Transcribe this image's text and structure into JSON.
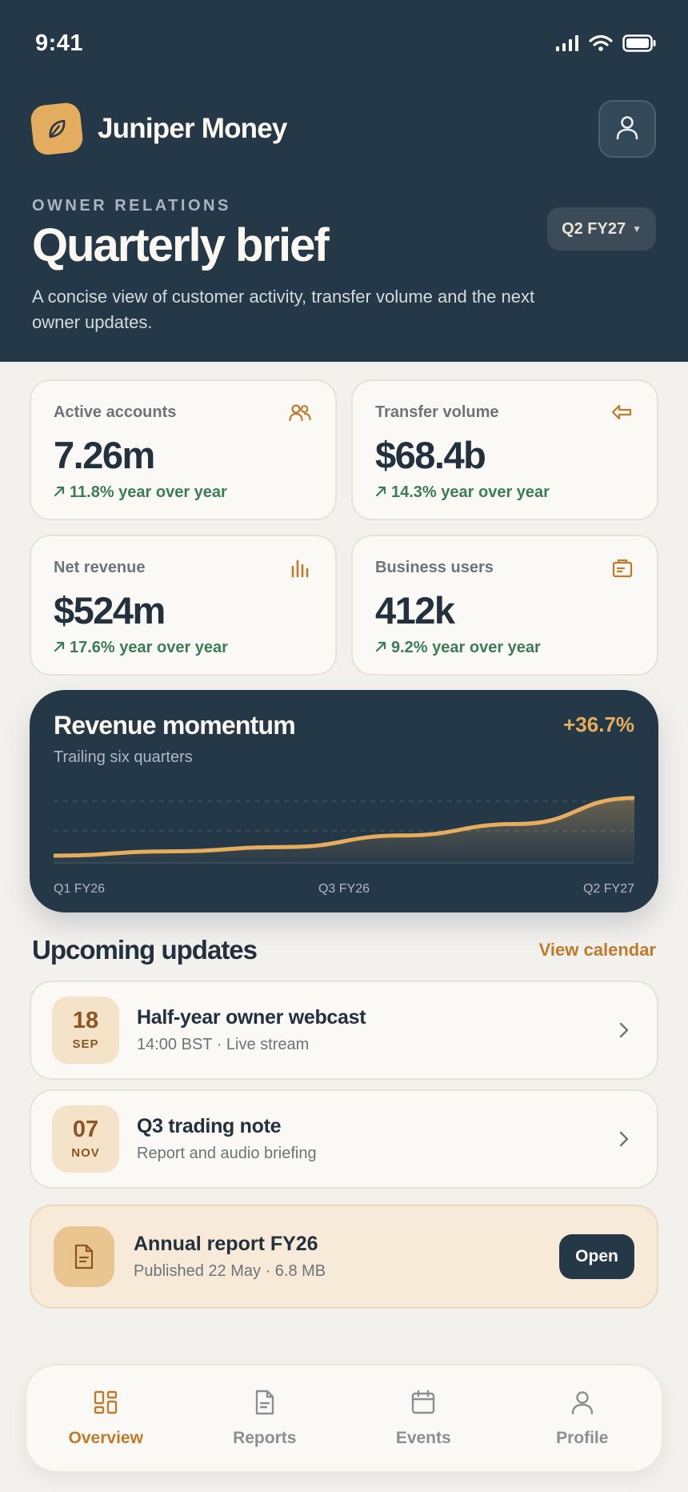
{
  "status_bar": {
    "time": "9:41"
  },
  "app": {
    "name": "Juniper Money"
  },
  "header": {
    "eyebrow": "OWNER RELATIONS",
    "title": "Quarterly brief",
    "subtitle": "A concise view of customer activity, transfer volume and the next owner updates.",
    "quarter": "Q2 FY27"
  },
  "stats": [
    {
      "label": "Active accounts",
      "value": "7.26m",
      "delta": "11.8% year over year",
      "icon": "users-icon"
    },
    {
      "label": "Transfer volume",
      "value": "$68.4b",
      "delta": "14.3% year over year",
      "icon": "arrow-left-icon"
    },
    {
      "label": "Net revenue",
      "value": "$524m",
      "delta": "17.6% year over year",
      "icon": "bar-chart-icon"
    },
    {
      "label": "Business users",
      "value": "412k",
      "delta": "9.2% year over year",
      "icon": "briefcase-icon"
    }
  ],
  "revenue_chart": {
    "title": "Revenue momentum",
    "subtitle": "Trailing six quarters",
    "growth": "+36.7%",
    "x_labels": [
      "Q1 FY26",
      "Q3 FY26",
      "Q2 FY27"
    ],
    "line_color": "#e7ad5f"
  },
  "chart_data": {
    "type": "area",
    "title": "Revenue momentum",
    "subtitle": "Trailing six quarters",
    "x": [
      "Q1 FY26",
      "Q2 FY26",
      "Q3 FY26",
      "Q4 FY26",
      "Q1 FY27",
      "Q2 FY27"
    ],
    "series": [
      {
        "values": [
          10,
          16,
          22,
          38,
          54,
          90
        ]
      }
    ],
    "ylim": [
      0,
      100
    ],
    "tick_labels_x": [
      "Q1 FY26",
      "Q3 FY26",
      "Q2 FY27"
    ],
    "grid": true,
    "legend": "none"
  },
  "updates": {
    "title": "Upcoming updates",
    "link": "View calendar",
    "events": [
      {
        "day": "18",
        "month": "SEP",
        "title": "Half-year owner webcast",
        "meta": "14:00 BST · Live stream"
      },
      {
        "day": "07",
        "month": "NOV",
        "title": "Q3 trading note",
        "meta": "Report and audio briefing"
      }
    ]
  },
  "report": {
    "title": "Annual report FY26",
    "meta": "Published 22 May · 6.8 MB",
    "button": "Open"
  },
  "tabs": [
    {
      "label": "Overview",
      "icon": "dashboard-icon",
      "active": true
    },
    {
      "label": "Reports",
      "icon": "document-icon",
      "active": false
    },
    {
      "label": "Events",
      "icon": "calendar-icon",
      "active": false
    },
    {
      "label": "Profile",
      "icon": "person-icon",
      "active": false
    }
  ],
  "colors": {
    "navy": "#253847",
    "accent": "#c17a2b",
    "gold": "#e3ac5f",
    "positive": "#3c7d58",
    "background": "#f3f1ed"
  }
}
